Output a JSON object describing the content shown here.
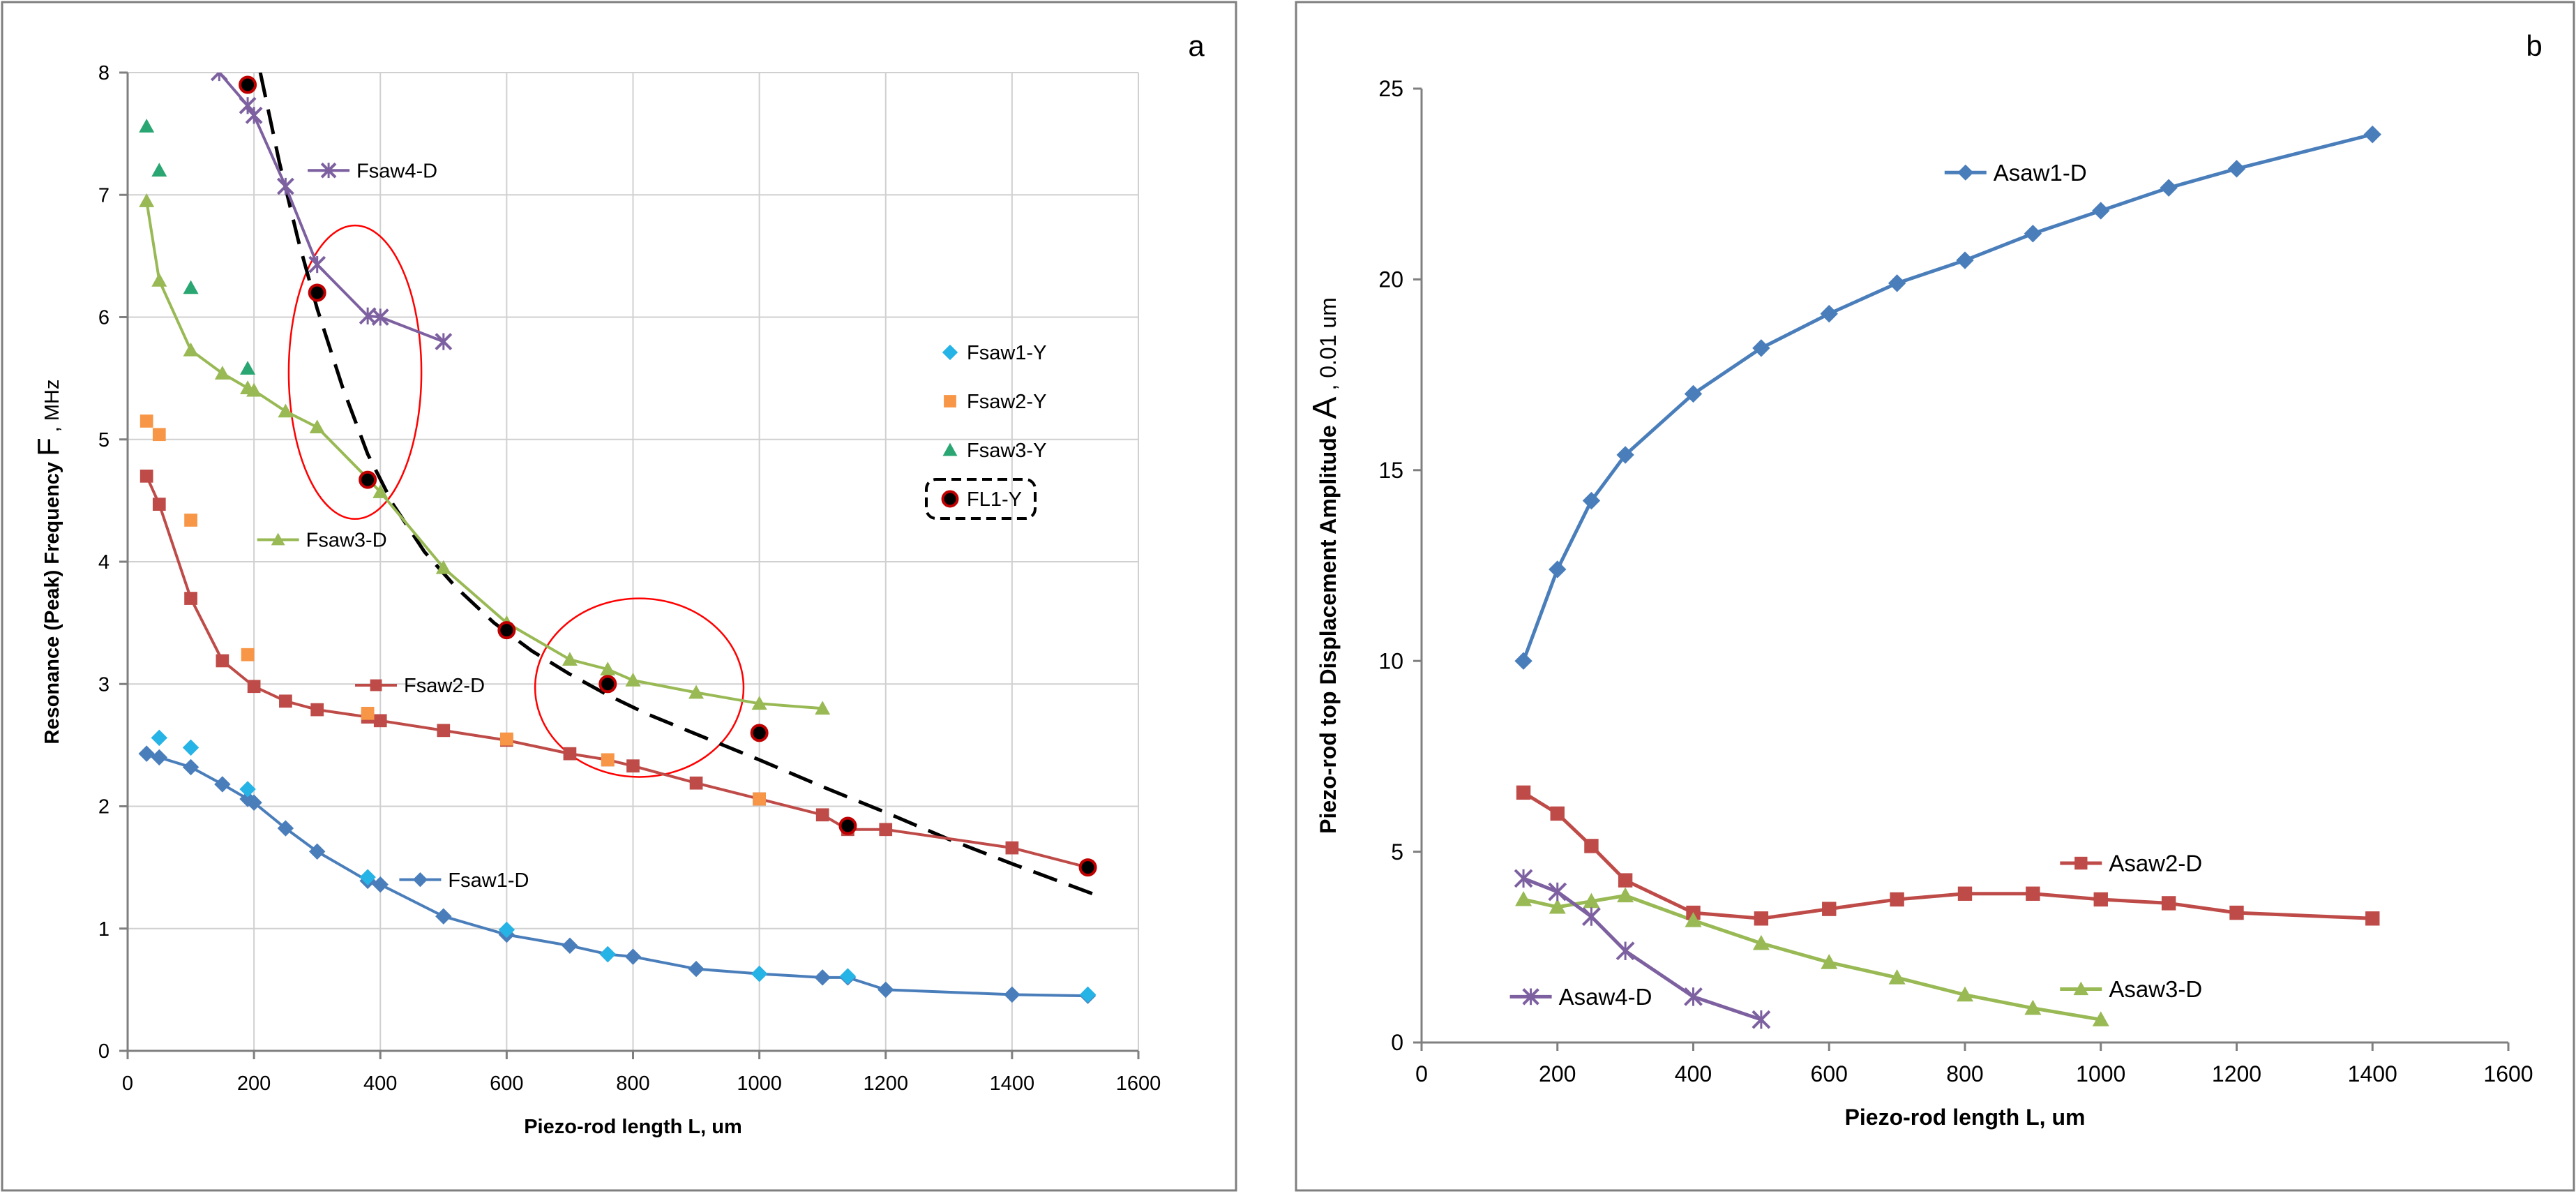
{
  "chart_data": [
    {
      "panel_label": "a",
      "type": "line",
      "xlabel": "Piezo-rod length L, um",
      "ylabel_main": "Resonance (Peak) Frequency",
      "ylabel_symbol": "F",
      "ylabel_unit": ", MHz",
      "xlim": [
        0,
        1600
      ],
      "ylim": [
        0,
        8
      ],
      "x_ticks": [
        0,
        200,
        400,
        600,
        800,
        1000,
        1200,
        1400,
        1600
      ],
      "y_ticks": [
        0,
        1,
        2,
        3,
        4,
        5,
        6,
        7,
        8
      ],
      "grid": true,
      "legend_position": "right",
      "series": [
        {
          "name": "Fsaw1-D",
          "kind": "line",
          "marker": "diamond",
          "color": "#4a7ebb",
          "label_at": [
            430,
            1.4
          ],
          "x": [
            30,
            50,
            100,
            150,
            190,
            200,
            250,
            300,
            380,
            400,
            500,
            600,
            700,
            760,
            800,
            900,
            1000,
            1100,
            1140,
            1200,
            1400,
            1520
          ],
          "y": [
            2.43,
            2.4,
            2.32,
            2.18,
            2.06,
            2.03,
            1.82,
            1.63,
            1.39,
            1.36,
            1.1,
            0.95,
            0.86,
            0.79,
            0.77,
            0.67,
            0.63,
            0.6,
            0.6,
            0.5,
            0.46,
            0.45
          ]
        },
        {
          "name": "Fsaw2-D",
          "kind": "line",
          "marker": "square",
          "color": "#be4b48",
          "label_at": [
            360,
            2.99
          ],
          "x": [
            30,
            50,
            100,
            150,
            200,
            250,
            300,
            380,
            400,
            500,
            600,
            700,
            760,
            800,
            900,
            1000,
            1100,
            1140,
            1200,
            1400,
            1520
          ],
          "y": [
            4.7,
            4.47,
            3.7,
            3.19,
            2.98,
            2.86,
            2.79,
            2.73,
            2.7,
            2.62,
            2.54,
            2.43,
            2.38,
            2.33,
            2.19,
            2.06,
            1.93,
            1.81,
            1.81,
            1.66,
            1.5
          ]
        },
        {
          "name": "Fsaw3-D",
          "kind": "line",
          "marker": "triangle",
          "color": "#98b954",
          "label_at": [
            205,
            4.18
          ],
          "x": [
            30,
            50,
            100,
            150,
            190,
            200,
            250,
            300,
            380,
            400,
            500,
            600,
            700,
            760,
            800,
            900,
            1000,
            1100
          ],
          "y": [
            6.95,
            6.3,
            5.73,
            5.54,
            5.42,
            5.4,
            5.23,
            5.1,
            4.68,
            4.57,
            3.95,
            3.5,
            3.2,
            3.12,
            3.03,
            2.93,
            2.84,
            2.8
          ]
        },
        {
          "name": "Fsaw4-D",
          "kind": "line",
          "marker": "x",
          "color": "#7d60a0",
          "label_at": [
            285,
            7.2
          ],
          "x": [
            145,
            190,
            200,
            250,
            300,
            380,
            400,
            500
          ],
          "y": [
            8.0,
            7.73,
            7.65,
            7.07,
            6.43,
            6.01,
            6.0,
            5.8
          ]
        },
        {
          "name": "Fsaw1-Y",
          "kind": "scatter",
          "marker": "diamond",
          "color": "#26b4e6",
          "x": [
            50,
            100,
            190,
            380,
            600,
            760,
            1000,
            1140,
            1520
          ],
          "y": [
            2.56,
            2.48,
            2.14,
            1.42,
            0.99,
            0.79,
            0.63,
            0.61,
            0.46
          ]
        },
        {
          "name": "Fsaw2-Y",
          "kind": "scatter",
          "marker": "square",
          "color": "#f79646",
          "x": [
            30,
            50,
            100,
            190,
            380,
            600,
            760,
            1000
          ],
          "y": [
            5.15,
            5.04,
            4.34,
            3.24,
            2.76,
            2.55,
            2.38,
            2.06
          ]
        },
        {
          "name": "Fsaw3-Y",
          "kind": "scatter",
          "marker": "triangle",
          "color": "#2aa672",
          "x": [
            30,
            50,
            100,
            190
          ],
          "y": [
            7.56,
            7.2,
            6.24,
            5.58
          ]
        },
        {
          "name": "FL1-Y",
          "kind": "scatter",
          "marker": "circle-dot",
          "color": "#000000",
          "accent": "#c00000",
          "x": [
            190,
            300,
            380,
            600,
            760,
            1000,
            1140,
            1520
          ],
          "y": [
            7.9,
            6.2,
            4.67,
            3.44,
            3.0,
            2.6,
            1.84,
            1.5
          ]
        }
      ],
      "legend": [
        "Fsaw1-Y",
        "Fsaw2-Y",
        "Fsaw3-Y",
        "FL1-Y"
      ],
      "fit_curve": {
        "style": "dashed",
        "color": "#000000",
        "x": [
          210,
          240,
          270,
          300,
          340,
          380,
          420,
          470,
          520,
          580,
          640,
          700,
          760,
          820,
          900,
          1000,
          1100,
          1200,
          1300,
          1400,
          1530
        ],
        "y": [
          8.0,
          7.27,
          6.63,
          6.07,
          5.43,
          4.88,
          4.47,
          4.08,
          3.79,
          3.5,
          3.27,
          3.08,
          2.91,
          2.76,
          2.59,
          2.38,
          2.16,
          1.95,
          1.73,
          1.53,
          1.28
        ]
      },
      "ellipses": [
        {
          "cx": 360,
          "cy": 5.55,
          "rx": 105,
          "ry": 1.2,
          "color": "#ff0000"
        },
        {
          "cx": 810,
          "cy": 2.97,
          "rx": 165,
          "ry": 0.73,
          "color": "#ff0000"
        }
      ]
    },
    {
      "panel_label": "b",
      "type": "line",
      "xlabel": "Piezo-rod length L, um",
      "ylabel_main": "Piezo-rod top Displacement Amplitude",
      "ylabel_symbol": "A",
      "ylabel_unit": ", 0.01 um",
      "xlim": [
        0,
        1600
      ],
      "ylim": [
        0,
        25
      ],
      "x_ticks": [
        0,
        200,
        400,
        600,
        800,
        1000,
        1200,
        1400,
        1600
      ],
      "y_ticks": [
        0,
        5,
        10,
        15,
        20,
        25
      ],
      "grid": false,
      "series": [
        {
          "name": "Asaw1-D",
          "kind": "line",
          "marker": "diamond",
          "color": "#4a7ebb",
          "label_at": [
            770,
            22.8
          ],
          "x": [
            150,
            200,
            250,
            300,
            400,
            500,
            600,
            700,
            800,
            900,
            1000,
            1100,
            1200,
            1400
          ],
          "y": [
            10.0,
            12.4,
            14.2,
            15.4,
            17.0,
            18.2,
            19.1,
            19.9,
            20.5,
            21.2,
            21.8,
            22.4,
            22.9,
            23.8
          ]
        },
        {
          "name": "Asaw2-D",
          "kind": "line",
          "marker": "square",
          "color": "#be4b48",
          "label_at": [
            940,
            4.7
          ],
          "x": [
            150,
            200,
            250,
            300,
            400,
            500,
            600,
            700,
            800,
            900,
            1000,
            1100,
            1200,
            1400
          ],
          "y": [
            6.55,
            6.0,
            5.15,
            4.25,
            3.4,
            3.25,
            3.5,
            3.75,
            3.9,
            3.9,
            3.75,
            3.65,
            3.4,
            3.25
          ]
        },
        {
          "name": "Asaw3-D",
          "kind": "line",
          "marker": "triangle",
          "color": "#98b954",
          "label_at": [
            940,
            1.4
          ],
          "x": [
            150,
            200,
            250,
            300,
            400,
            500,
            600,
            700,
            800,
            900,
            1000
          ],
          "y": [
            3.75,
            3.55,
            3.7,
            3.85,
            3.2,
            2.6,
            2.1,
            1.7,
            1.25,
            0.9,
            0.6
          ]
        },
        {
          "name": "Asaw4-D",
          "kind": "line",
          "marker": "x",
          "color": "#7d60a0",
          "label_at": [
            130,
            1.2
          ],
          "x": [
            150,
            200,
            250,
            300,
            400,
            500
          ],
          "y": [
            4.3,
            3.95,
            3.3,
            2.4,
            1.2,
            0.6
          ]
        }
      ]
    }
  ]
}
